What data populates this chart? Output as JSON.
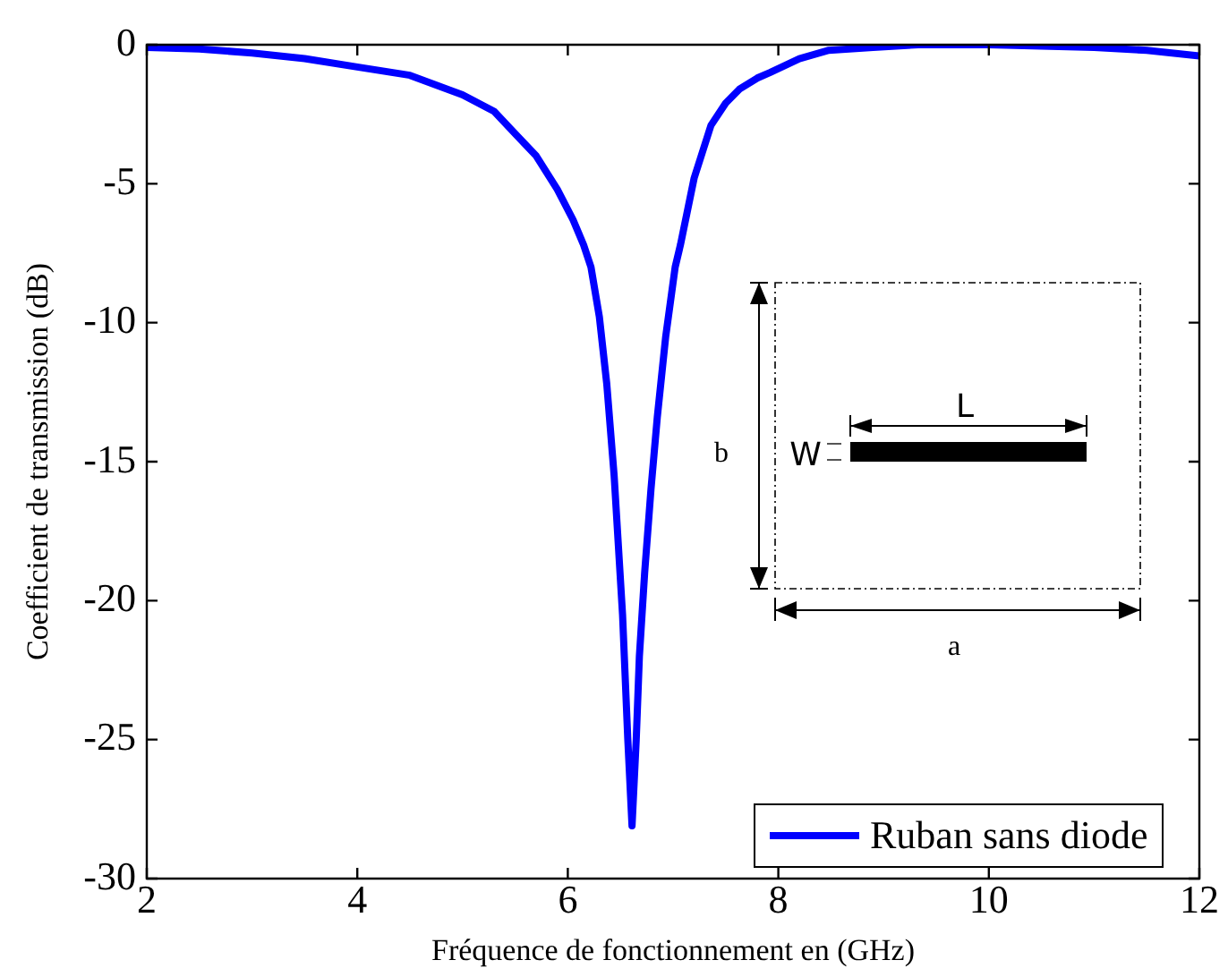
{
  "chart_data": {
    "type": "line",
    "xlabel": "Fréquence de fonctionnement en (GHz)",
    "ylabel": "Coefficient de transmission (dB)",
    "xlim": [
      2,
      12
    ],
    "xticks": [
      2,
      4,
      6,
      8,
      10,
      12
    ],
    "ylim": [
      -30,
      0
    ],
    "yticks": [
      -30,
      -25,
      -20,
      -15,
      -10,
      -5,
      0
    ],
    "grid": false,
    "legend": "bottom right",
    "marker": "none",
    "line_style": "solid",
    "annotations": [
      "L",
      "W",
      "b",
      "a"
    ],
    "series": [
      {
        "name": "Ruban sans diode",
        "color": "#0000ff",
        "x": [
          2,
          2.5,
          3,
          3.5,
          4,
          4.5,
          5,
          5.3,
          5.5,
          5.7,
          5.9,
          6.05,
          6.15,
          6.22,
          6.3,
          6.37,
          6.44,
          6.52,
          6.57,
          6.61,
          6.65,
          6.68,
          6.73,
          6.79,
          6.85,
          6.93,
          7.02,
          7.07,
          7.2,
          7.36,
          7.5,
          7.63,
          7.8,
          7.92,
          8.2,
          8.48,
          8.9,
          9.33,
          10,
          10.5,
          11,
          11.5,
          12
        ],
        "values": [
          -0.1,
          -0.15,
          -0.3,
          -0.5,
          -0.8,
          -1.1,
          -1.8,
          -2.4,
          -3.2,
          -4.0,
          -5.2,
          -6.3,
          -7.2,
          -8.0,
          -9.8,
          -12.2,
          -15.5,
          -20.5,
          -25,
          -28.1,
          -25,
          -22,
          -19,
          -16,
          -13.4,
          -10.5,
          -8.0,
          -7.2,
          -4.8,
          -2.9,
          -2.1,
          -1.6,
          -1.2,
          -1.0,
          -0.5,
          -0.2,
          -0.1,
          0,
          0,
          -0.05,
          -0.1,
          -0.2,
          -0.4
        ]
      }
    ]
  }
}
